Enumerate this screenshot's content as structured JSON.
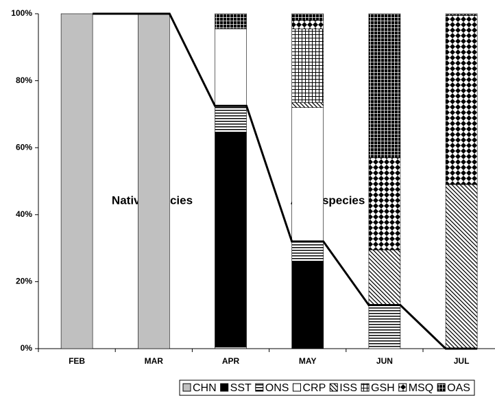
{
  "chart_data": {
    "type": "stacked_bar",
    "categories": [
      "FEB",
      "MAR",
      "APR",
      "MAY",
      "JUN",
      "JUL"
    ],
    "series": [
      {
        "name": "CHN",
        "color": "#c0c0c0",
        "pattern": "solid",
        "values": [
          100,
          100,
          0.5,
          0,
          0,
          0
        ]
      },
      {
        "name": "SST",
        "color": "#000000",
        "pattern": "solid",
        "values": [
          0,
          0,
          64,
          26,
          0,
          0
        ]
      },
      {
        "name": "ONS",
        "color": "#000000",
        "pattern": "hlines",
        "values": [
          0,
          0,
          8,
          6,
          13,
          0
        ]
      },
      {
        "name": "CRP",
        "color": "#ffffff",
        "pattern": "solid",
        "values": [
          0,
          0,
          23,
          40,
          0,
          0
        ]
      },
      {
        "name": "ISS",
        "color": "#000000",
        "pattern": "diagonal",
        "values": [
          0,
          0,
          0,
          1.5,
          16.5,
          49
        ]
      },
      {
        "name": "GSH",
        "color": "#000000",
        "pattern": "grid",
        "values": [
          0,
          0,
          0,
          22,
          0,
          0
        ]
      },
      {
        "name": "MSQ",
        "color": "#000000",
        "pattern": "diamond",
        "values": [
          0,
          0,
          0,
          2.5,
          27.5,
          50.5
        ]
      },
      {
        "name": "OAS",
        "color": "#000000",
        "pattern": "inverse-grid",
        "values": [
          0,
          0,
          4.5,
          2,
          43,
          0.5
        ]
      }
    ],
    "ylim": [
      0,
      100
    ],
    "yticks": [
      {
        "value": 0,
        "label": "0%"
      },
      {
        "value": 20,
        "label": "20%"
      },
      {
        "value": 40,
        "label": "40%"
      },
      {
        "value": 60,
        "label": "60%"
      },
      {
        "value": 80,
        "label": "80%"
      },
      {
        "value": 100,
        "label": "100%"
      }
    ],
    "annotations": [
      "Native species",
      "Alien species"
    ],
    "legend": "bottom"
  }
}
